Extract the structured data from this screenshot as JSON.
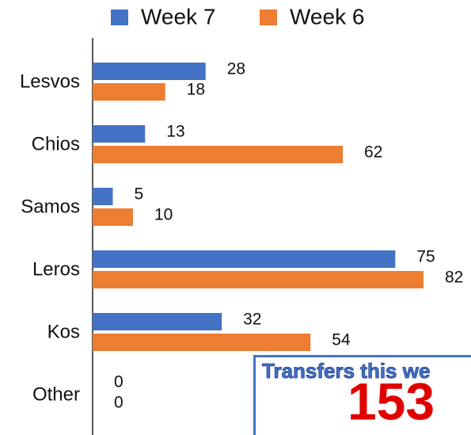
{
  "chart_data": {
    "type": "bar",
    "orientation": "horizontal",
    "categories": [
      "Lesvos",
      "Chios",
      "Samos",
      "Leros",
      "Kos",
      "Other"
    ],
    "series": [
      {
        "name": "Week 7",
        "color": "#4472c4",
        "values": [
          28,
          13,
          5,
          75,
          32,
          0
        ]
      },
      {
        "name": "Week 6",
        "color": "#ed7d31",
        "values": [
          18,
          62,
          10,
          82,
          54,
          0
        ]
      }
    ],
    "legend": "top",
    "annotation": {
      "title": "Transfers this we",
      "value": 153
    }
  }
}
